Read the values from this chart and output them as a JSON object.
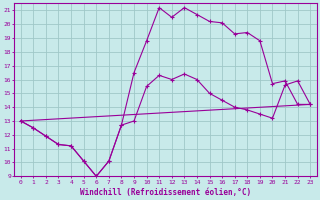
{
  "title": "",
  "xlabel": "Windchill (Refroidissement éolien,°C)",
  "ylabel": "",
  "xlim": [
    -0.5,
    23.5
  ],
  "ylim": [
    9,
    21.5
  ],
  "xticks": [
    0,
    1,
    2,
    3,
    4,
    5,
    6,
    7,
    8,
    9,
    10,
    11,
    12,
    13,
    14,
    15,
    16,
    17,
    18,
    19,
    20,
    21,
    22,
    23
  ],
  "yticks": [
    9,
    10,
    11,
    12,
    13,
    14,
    15,
    16,
    17,
    18,
    19,
    20,
    21
  ],
  "background_color": "#c8eaea",
  "grid_color": "#a0c8c8",
  "line_color": "#990099",
  "marker": "+",
  "line1_x": [
    0,
    1,
    2,
    3,
    4,
    5,
    6,
    7,
    8,
    9,
    10,
    11,
    12,
    13,
    14,
    15,
    16,
    17,
    18,
    19,
    20,
    21,
    22,
    23
  ],
  "line1_y": [
    13.0,
    12.5,
    11.9,
    11.3,
    11.2,
    10.1,
    9.0,
    10.1,
    12.7,
    16.5,
    18.8,
    21.2,
    20.5,
    21.2,
    20.7,
    20.2,
    20.1,
    19.3,
    19.4,
    18.8,
    15.7,
    15.9,
    14.2,
    14.2
  ],
  "line2_x": [
    0,
    1,
    2,
    3,
    4,
    5,
    6,
    7,
    8,
    9,
    10,
    11,
    12,
    13,
    14,
    15,
    16,
    17,
    18,
    19,
    20,
    21,
    22,
    23
  ],
  "line2_y": [
    13.0,
    12.5,
    11.9,
    11.3,
    11.2,
    10.1,
    9.0,
    10.1,
    12.7,
    13.0,
    15.5,
    16.3,
    16.0,
    16.4,
    16.0,
    15.0,
    14.5,
    14.0,
    13.8,
    13.5,
    13.2,
    15.6,
    15.9,
    14.2
  ],
  "line3_x": [
    0,
    23
  ],
  "line3_y": [
    13.0,
    14.2
  ]
}
